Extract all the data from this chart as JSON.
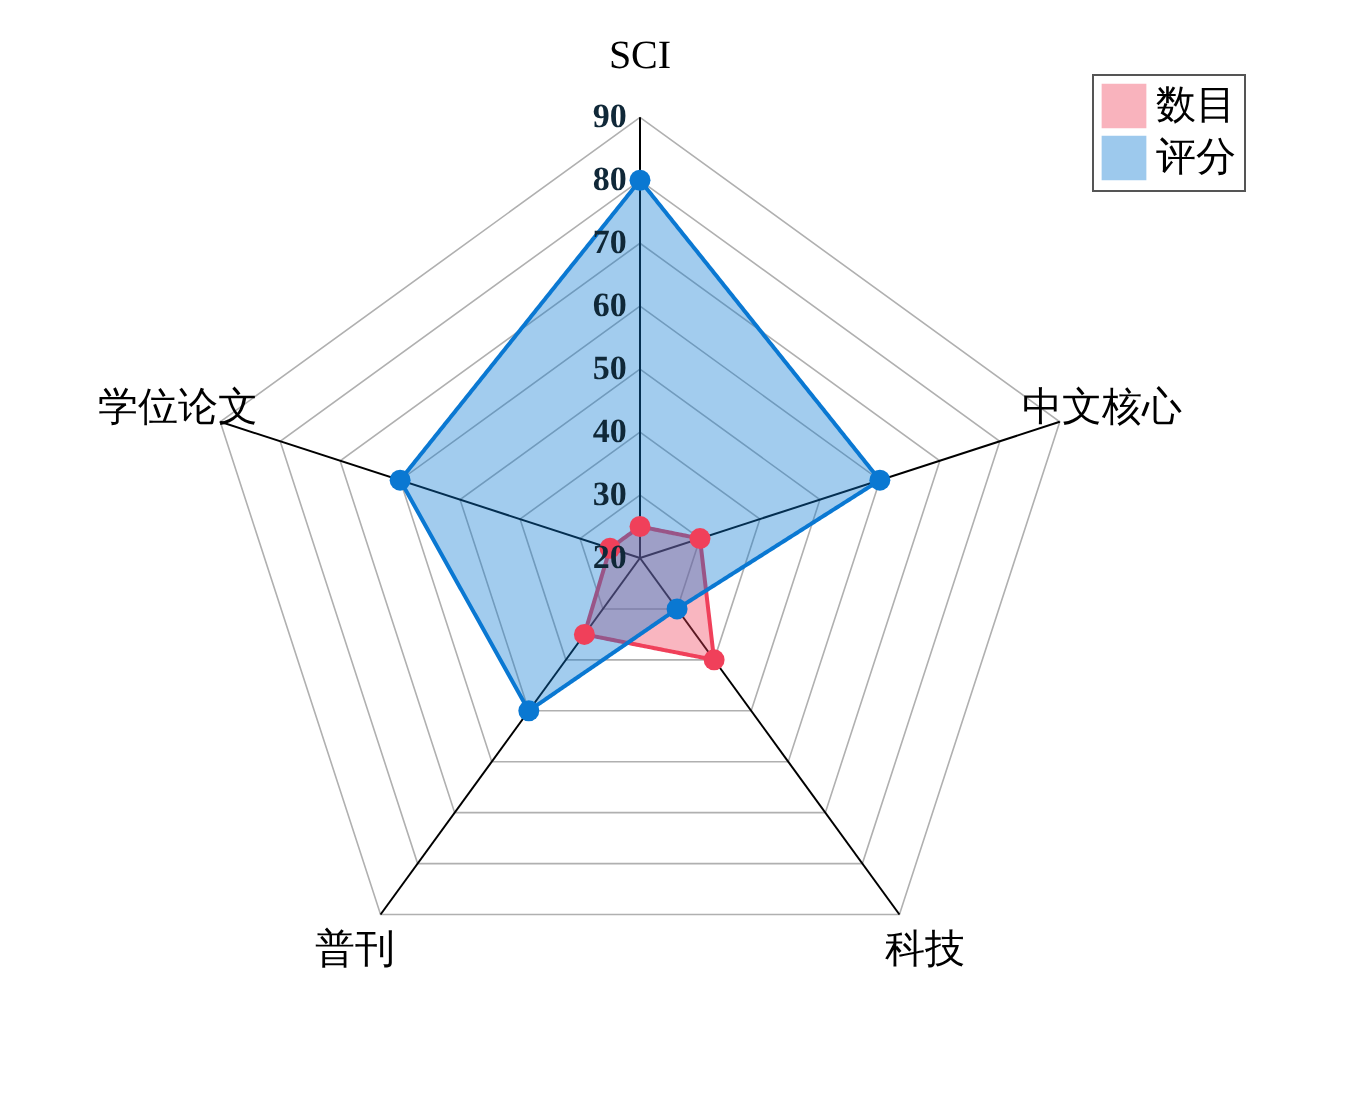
{
  "chart_data": {
    "type": "radar",
    "categories": [
      "SCI",
      "中文核心",
      "科技",
      "普刊",
      "学位论文"
    ],
    "series": [
      {
        "name": "数目",
        "color": "#f0405a",
        "values": [
          25,
          30,
          40,
          35,
          25
        ]
      },
      {
        "name": "评分",
        "color": "#0a78d2",
        "values": [
          80,
          60,
          30,
          50,
          60
        ]
      }
    ],
    "ylim": [
      20,
      90
    ],
    "yticks": [
      20,
      30,
      40,
      50,
      60,
      70,
      80,
      90
    ],
    "grid": true,
    "legend": "top right",
    "marker": "circle",
    "line_style": "solid"
  }
}
